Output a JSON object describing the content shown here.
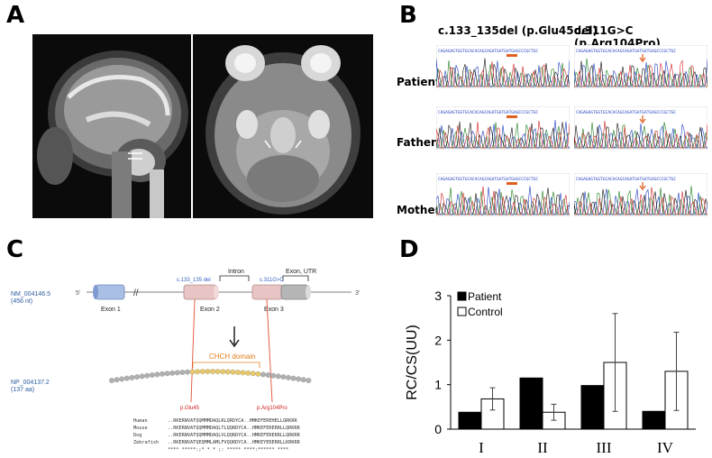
{
  "panels": {
    "a": "A",
    "b": "B",
    "c": "C",
    "d": "D"
  },
  "panel_b": {
    "col1_title": "c.133_135del (p.Glu45del)",
    "col2_title": "c.311G>C (p.Arg104Pro)",
    "rows": [
      "Patient",
      "Father",
      "Mother"
    ],
    "trace_colors": [
      "#1a7f1a",
      "#1f3fbf",
      "#111111",
      "#d02020"
    ],
    "marker_color": "#e06020"
  },
  "panel_c": {
    "nm_id": "NM_004146.5",
    "nm_len": "(456 nt)",
    "np_id": "NP_004137.2",
    "np_len": "(137 aa)",
    "five_prime": "5'",
    "three_prime": "3'",
    "exon1": "Exon 1",
    "exon2": "Exon 2",
    "exon3": "Exon 3",
    "intron": "Intron",
    "exon_utr": "Exon, UTR",
    "var1": "c.133_135 del",
    "var2": "c.311G>C",
    "domain": "CHCH domain",
    "prot1": "p.Glu45",
    "prot2": "p.Arg104Pro",
    "alignment": [
      {
        "species": "Human",
        "seq": "..RKERNVATQQMMMDAQLRLQRDYCA..HMKEFEREHELLQRKRR"
      },
      {
        "species": "Mouse",
        "seq": "..RKERNVATQQMMMDAQLTLQQRDYCA..HMKEFERERRLLQRKRR"
      },
      {
        "species": "Dog",
        "seq": "..RKERNVATQQMMMDAQLVLQQRDYCA..HMKEFERERRLLQRKRR"
      },
      {
        "species": "Zebrafish",
        "seq": "..RKERNVATQEQMMLAMLFVQQRDYCA..HMKEYERERRLLKRKRR"
      }
    ],
    "conservation": "**** *****:;*  *  * ;: *****      ****:******  ****"
  },
  "chart_data": {
    "type": "bar",
    "title": "",
    "xlabel": "",
    "ylabel": "RC/CS(UU)",
    "categories": [
      "I",
      "II",
      "III",
      "IV"
    ],
    "ylim": [
      0,
      3
    ],
    "yticks": [
      0,
      1,
      2,
      3
    ],
    "legend_position": "top-left",
    "series": [
      {
        "name": "Patient",
        "fill": "#000000",
        "values": [
          0.38,
          1.15,
          0.98,
          0.4
        ],
        "errors": [
          0,
          0,
          0,
          0
        ]
      },
      {
        "name": "Control",
        "fill": "#ffffff",
        "values": [
          0.68,
          0.38,
          1.5,
          1.3
        ],
        "errors": [
          0.25,
          0.18,
          1.1,
          0.88
        ]
      }
    ]
  }
}
